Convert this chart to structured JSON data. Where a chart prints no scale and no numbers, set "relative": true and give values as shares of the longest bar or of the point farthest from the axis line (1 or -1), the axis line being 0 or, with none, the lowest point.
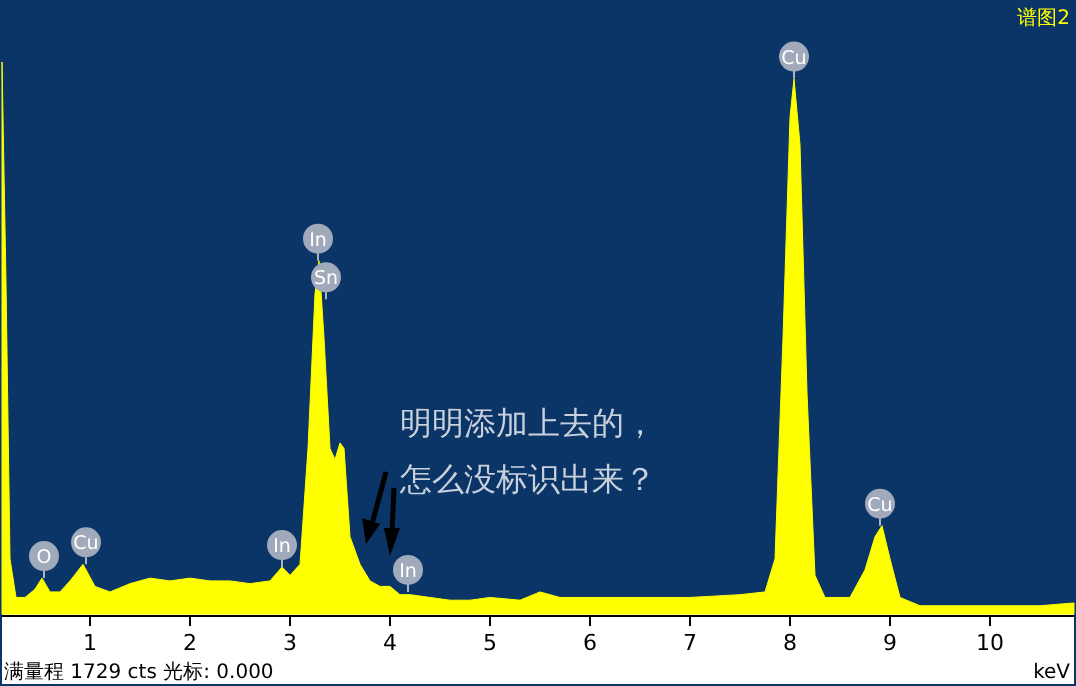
{
  "chart_data": {
    "type": "area",
    "title": "谱图2",
    "xlabel": "keV",
    "relative": true,
    "xlim": [
      0.12,
      10.84
    ],
    "xticks": [
      1,
      2,
      3,
      4,
      5,
      6,
      7,
      8,
      9,
      10
    ],
    "grid": false,
    "series": [
      {
        "color": "#ffff00",
        "x": [
          0.12,
          0.16,
          0.2,
          0.26,
          0.35,
          0.45,
          0.52,
          0.6,
          0.7,
          0.8,
          0.93,
          1.05,
          1.2,
          1.4,
          1.6,
          1.8,
          2.0,
          2.2,
          2.4,
          2.6,
          2.8,
          2.92,
          3.0,
          3.1,
          3.18,
          3.25,
          3.29,
          3.34,
          3.4,
          3.45,
          3.5,
          3.54,
          3.6,
          3.7,
          3.8,
          3.9,
          4.0,
          4.1,
          4.2,
          4.4,
          4.6,
          4.8,
          5.0,
          5.3,
          5.5,
          5.7,
          6.0,
          6.5,
          7.0,
          7.5,
          7.75,
          7.85,
          7.93,
          8.0,
          8.04,
          8.1,
          8.17,
          8.25,
          8.35,
          8.6,
          8.75,
          8.85,
          8.92,
          9.0,
          9.1,
          9.3,
          10.0,
          10.5,
          10.84
        ],
        "values": [
          1.0,
          0.6,
          0.1,
          0.03,
          0.03,
          0.045,
          0.065,
          0.04,
          0.04,
          0.06,
          0.09,
          0.05,
          0.04,
          0.055,
          0.065,
          0.06,
          0.065,
          0.06,
          0.06,
          0.055,
          0.06,
          0.085,
          0.07,
          0.09,
          0.3,
          0.58,
          0.64,
          0.5,
          0.3,
          0.28,
          0.31,
          0.3,
          0.14,
          0.09,
          0.06,
          0.05,
          0.05,
          0.035,
          0.035,
          0.03,
          0.025,
          0.025,
          0.03,
          0.025,
          0.04,
          0.03,
          0.03,
          0.03,
          0.03,
          0.035,
          0.04,
          0.1,
          0.5,
          0.9,
          0.97,
          0.85,
          0.4,
          0.07,
          0.03,
          0.03,
          0.08,
          0.14,
          0.16,
          0.1,
          0.03,
          0.015,
          0.015,
          0.015,
          0.02
        ]
      }
    ],
    "annotations": [
      {
        "text": "O",
        "x": 0.54,
        "y": 0.065
      },
      {
        "text": "Cu",
        "x": 0.96,
        "y": 0.09
      },
      {
        "text": "In",
        "x": 2.92,
        "y": 0.085
      },
      {
        "text": "In",
        "x": 3.28,
        "y": 0.64
      },
      {
        "text": "Sn",
        "x": 3.36,
        "y": 0.57
      },
      {
        "text": "In",
        "x": 4.18,
        "y": 0.04
      },
      {
        "text": "Cu",
        "x": 8.04,
        "y": 0.97
      },
      {
        "text": "Cu",
        "x": 8.9,
        "y": 0.16
      },
      "明明添加上去的，",
      "怎么没标识出来？",
      "满量程 1729 cts 光标: 0.000"
    ]
  }
}
